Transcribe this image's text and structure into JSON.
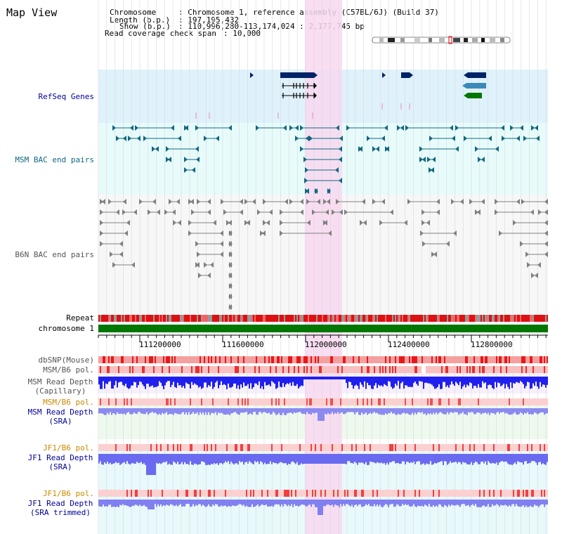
{
  "title": "Map View",
  "header": {
    "chromosome_key": "Chromosome",
    "chromosome_val": ": Chromosome 1, reference assembly (C57BL/6J) (Build 37)",
    "length_key": "Length (b.p.)",
    "length_val": ": 197,195,432",
    "show_key": "Show (b.p.)",
    "show_val": ": 110,996,280-113,174,024 : 2,177,745 bp",
    "span_key": "Read coverage check span",
    "span_val": ": 10,000"
  },
  "labels": {
    "refseq": "RefSeq Genes",
    "msm_bac": "MSM BAC end pairs",
    "b6n_bac": "B6N BAC end pairs",
    "repeat": "Repeat",
    "chromosome": "chromosome 1",
    "dbsnp": "dbSNP(Mouse)",
    "msm_pol": "MSM/B6 pol.",
    "msm_depth_cap_1": "MSM Read Depth",
    "msm_depth_cap_2": "(Capillary)",
    "msm_pol_sra": "MSM/B6 pol.",
    "msm_depth_sra_1": "MSM Read Depth",
    "msm_depth_sra_2": "(SRA)",
    "jf1_pol": "JF1/B6 pol.",
    "jf1_depth_1": "JF1 Read Depth",
    "jf1_depth_2": "(SRA)",
    "jf1_pol_2": "JF1/B6 pol.",
    "jf1_depth_trim_1": "JF1 Read Depth",
    "jf1_depth_trim_2": "(SRA trimmed)"
  },
  "ruler": {
    "ticks": [
      "111200000",
      "111600000",
      "112000000",
      "112400000",
      "112800000"
    ]
  },
  "colors": {
    "refseq_bg": "#dff2fb",
    "msm_bg": "#e8fbfb",
    "b6n_bg": "#f7f7f7",
    "highlight": "#f8d8f0",
    "chromosome_bar": "#007700",
    "repeat_red": "#dd1111",
    "repeat_gray": "#888888",
    "gene_dark": "#002266",
    "gene_mid": "#3a8ab8",
    "gene_green": "#007700",
    "msm_pair": "#106880",
    "b6n_pair": "#707070",
    "label_dark_blue": "#000099",
    "label_teal": "#106880",
    "label_gray": "#555555",
    "label_orange": "#cc8800",
    "depth_blue": "#2020ee",
    "depth_light_blue": "#7a7af0",
    "pol_red": "#ee2222",
    "pol_pink": "#f8a8a8"
  }
}
